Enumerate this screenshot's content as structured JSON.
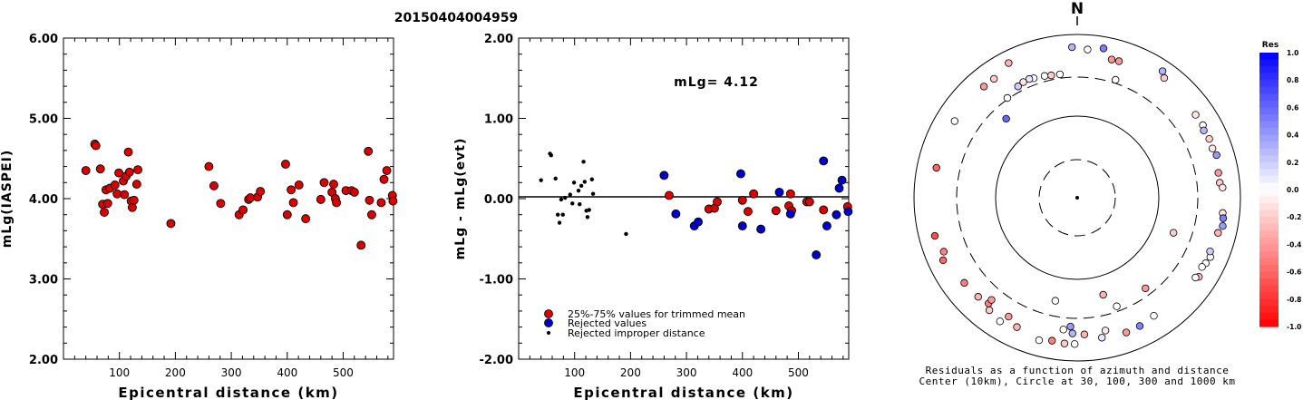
{
  "title": "20150404004959",
  "chart_data": [
    {
      "type": "scatter",
      "xlabel": "Epicentral distance (km)",
      "ylabel": "mLg(IASPEI)",
      "xlim": [
        0,
        590
      ],
      "ylim": [
        2.0,
        6.0
      ],
      "xticks": [
        "100",
        "200",
        "300",
        "400",
        "500"
      ],
      "yticks": [
        "2.00",
        "3.00",
        "4.00",
        "5.00",
        "6.00"
      ],
      "marker_color": "#dd0000",
      "points": [
        [
          40,
          4.35
        ],
        [
          56,
          4.68
        ],
        [
          58,
          4.66
        ],
        [
          66,
          4.37
        ],
        [
          70,
          3.93
        ],
        [
          73,
          3.83
        ],
        [
          76,
          4.11
        ],
        [
          79,
          3.94
        ],
        [
          83,
          4.13
        ],
        [
          92,
          4.17
        ],
        [
          96,
          4.06
        ],
        [
          99,
          4.32
        ],
        [
          107,
          4.22
        ],
        [
          109,
          4.05
        ],
        [
          112,
          4.28
        ],
        [
          116,
          4.58
        ],
        [
          118,
          4.33
        ],
        [
          121,
          3.97
        ],
        [
          123,
          3.89
        ],
        [
          126,
          3.98
        ],
        [
          131,
          4.18
        ],
        [
          133,
          4.36
        ],
        [
          192,
          3.69
        ],
        [
          260,
          4.4
        ],
        [
          269,
          4.16
        ],
        [
          281,
          3.94
        ],
        [
          314,
          3.8
        ],
        [
          321,
          3.86
        ],
        [
          331,
          3.99
        ],
        [
          334,
          4.01
        ],
        [
          347,
          4.02
        ],
        [
          352,
          4.09
        ],
        [
          397,
          4.43
        ],
        [
          400,
          3.8
        ],
        [
          407,
          4.11
        ],
        [
          411,
          3.95
        ],
        [
          421,
          4.17
        ],
        [
          433,
          3.75
        ],
        [
          460,
          3.99
        ],
        [
          466,
          4.2
        ],
        [
          480,
          4.08
        ],
        [
          483,
          4.18
        ],
        [
          486,
          4.0
        ],
        [
          488,
          3.95
        ],
        [
          505,
          4.1
        ],
        [
          515,
          4.1
        ],
        [
          520,
          4.08
        ],
        [
          532,
          3.42
        ],
        [
          545,
          4.59
        ],
        [
          547,
          3.98
        ],
        [
          551,
          3.8
        ],
        [
          568,
          3.95
        ],
        [
          573,
          4.24
        ],
        [
          578,
          4.35
        ],
        [
          588,
          4.04
        ],
        [
          589,
          3.97
        ]
      ]
    },
    {
      "type": "scatter",
      "xlabel": "Epicentral distance (km)",
      "ylabel": "mLg - mLg(evt)",
      "xlim": [
        0,
        590
      ],
      "ylim": [
        -2.0,
        2.0
      ],
      "xticks": [
        "100",
        "200",
        "300",
        "400",
        "500"
      ],
      "yticks": [
        "-2.00",
        "-1.00",
        "0.00",
        "1.00",
        "2.00"
      ],
      "annotation": "mLg= 4.12",
      "reference_line_y": 0.0,
      "legend": [
        {
          "label": "25%-75% values for trimmed mean",
          "color": "#dd0000",
          "marker": "circle"
        },
        {
          "label": "Rejected values",
          "color": "#0000cc",
          "marker": "circle"
        },
        {
          "label": "Rejected improper distance",
          "color": "#000000",
          "marker": "dot"
        }
      ],
      "series": [
        {
          "name": "25%-75% values for trimmed mean",
          "color": "#dd0000",
          "points": [
            [
              269,
              0.04
            ],
            [
              340,
              -0.13
            ],
            [
              350,
              -0.12
            ],
            [
              355,
              -0.04
            ],
            [
              400,
              -0.02
            ],
            [
              410,
              -0.16
            ],
            [
              420,
              0.06
            ],
            [
              460,
              -0.15
            ],
            [
              483,
              -0.09
            ],
            [
              486,
              0.06
            ],
            [
              488,
              -0.15
            ],
            [
              515,
              -0.04
            ],
            [
              520,
              -0.04
            ],
            [
              545,
              -0.14
            ],
            [
              588,
              -0.1
            ]
          ]
        },
        {
          "name": "Rejected values",
          "color": "#0000cc",
          "points": [
            [
              260,
              0.29
            ],
            [
              281,
              -0.19
            ],
            [
              314,
              -0.34
            ],
            [
              321,
              -0.29
            ],
            [
              397,
              0.31
            ],
            [
              400,
              -0.34
            ],
            [
              433,
              -0.38
            ],
            [
              466,
              0.08
            ],
            [
              486,
              -0.19
            ],
            [
              532,
              -0.7
            ],
            [
              545,
              0.47
            ],
            [
              551,
              -0.34
            ],
            [
              568,
              -0.2
            ],
            [
              573,
              0.13
            ],
            [
              578,
              0.23
            ],
            [
              589,
              -0.16
            ]
          ]
        },
        {
          "name": "Rejected improper distance",
          "color": "#000000",
          "points": [
            [
              40,
              0.23
            ],
            [
              56,
              0.56
            ],
            [
              58,
              0.54
            ],
            [
              66,
              0.25
            ],
            [
              70,
              -0.2
            ],
            [
              73,
              -0.3
            ],
            [
              76,
              -0.01
            ],
            [
              79,
              -0.2
            ],
            [
              83,
              0.01
            ],
            [
              92,
              0.05
            ],
            [
              96,
              -0.06
            ],
            [
              99,
              0.2
            ],
            [
              107,
              0.1
            ],
            [
              109,
              -0.07
            ],
            [
              112,
              0.16
            ],
            [
              116,
              0.46
            ],
            [
              118,
              0.21
            ],
            [
              121,
              -0.15
            ],
            [
              123,
              -0.23
            ],
            [
              126,
              -0.14
            ],
            [
              131,
              0.24
            ],
            [
              133,
              0.06
            ],
            [
              192,
              -0.44
            ]
          ]
        }
      ]
    }
  ],
  "polar": {
    "north_label": "N",
    "caption_line1": "Residuals as a function of azimuth and distance",
    "caption_line2": "Center (10km), Circle at 30, 100, 300 and 1000 km",
    "colorbar_title": "Res",
    "colorbar_ticks": [
      "1.0",
      "0.8",
      "0.6",
      "0.4",
      "0.2",
      "0.0",
      "-0.2",
      "-0.4",
      "-0.6",
      "-0.8",
      "-1.0"
    ],
    "ring_distances_km": [
      30,
      100,
      300,
      1000
    ],
    "stations": [
      {
        "az": -2,
        "dist": 700,
        "res": 0.3
      },
      {
        "az": 4,
        "dist": 660,
        "res": 0.0
      },
      {
        "az": 10,
        "dist": 720,
        "res": 0.5
      },
      {
        "az": 14,
        "dist": 555,
        "res": -0.4
      },
      {
        "az": 17,
        "dist": 560,
        "res": -0.4
      },
      {
        "az": 34,
        "dist": 740,
        "res": 0.3
      },
      {
        "az": 36,
        "dist": 650,
        "res": -0.2
      },
      {
        "az": 18,
        "dist": 330,
        "res": 0.0
      },
      {
        "az": -8,
        "dist": 335,
        "res": 0.0
      },
      {
        "az": -12,
        "dist": 340,
        "res": -0.2
      },
      {
        "az": -15,
        "dist": 350,
        "res": 0.0
      },
      {
        "az": -20,
        "dist": 360,
        "res": 0.0
      },
      {
        "az": -22,
        "dist": 370,
        "res": 0.1
      },
      {
        "az": -25,
        "dist": 365,
        "res": -0.1
      },
      {
        "az": -28,
        "dist": 350,
        "res": 0.2
      },
      {
        "az": -35,
        "dist": 310,
        "res": 0.0
      },
      {
        "az": -42,
        "dist": 200,
        "res": 0.6
      },
      {
        "az": -35,
        "dist": 600,
        "res": -0.2
      },
      {
        "az": -27,
        "dist": 710,
        "res": -0.3
      },
      {
        "az": -40,
        "dist": 600,
        "res": -0.4
      },
      {
        "az": -58,
        "dist": 590,
        "res": 0.0
      },
      {
        "az": -78,
        "dist": 580,
        "res": -0.6
      },
      {
        "az": 55,
        "dist": 590,
        "res": -0.1
      },
      {
        "az": 60,
        "dist": 600,
        "res": 0.0
      },
      {
        "az": 62,
        "dist": 570,
        "res": 0.3
      },
      {
        "az": 66,
        "dist": 590,
        "res": -0.2
      },
      {
        "az": 70,
        "dist": 580,
        "res": -0.1
      },
      {
        "az": 73,
        "dist": 610,
        "res": 0.4
      },
      {
        "az": 80,
        "dist": 570,
        "res": -0.4
      },
      {
        "az": 84,
        "dist": 570,
        "res": -0.2
      },
      {
        "az": 86,
        "dist": 610,
        "res": -0.1
      },
      {
        "az": 96,
        "dist": 620,
        "res": -0.1
      },
      {
        "az": 98,
        "dist": 640,
        "res": 0.5
      },
      {
        "az": 101,
        "dist": 655,
        "res": 0.4
      },
      {
        "az": 104,
        "dist": 600,
        "res": -0.3
      },
      {
        "az": 114,
        "dist": 610,
        "res": 0.0
      },
      {
        "az": 112,
        "dist": 570,
        "res": 0.2
      },
      {
        "az": 117,
        "dist": 585,
        "res": 0.0
      },
      {
        "az": 119,
        "dist": 560,
        "res": 0.0
      },
      {
        "az": 123,
        "dist": 600,
        "res": -0.3
      },
      {
        "az": 124,
        "dist": 560,
        "res": 0.0
      },
      {
        "az": 110,
        "dist": 180,
        "res": -0.2
      },
      {
        "az": 143,
        "dist": 245,
        "res": -0.4
      },
      {
        "az": 147,
        "dist": 530,
        "res": 0.0
      },
      {
        "az": 154,
        "dist": 560,
        "res": 0.5
      },
      {
        "az": 160,
        "dist": 570,
        "res": -0.4
      },
      {
        "az": 168,
        "dist": 460,
        "res": -0.1
      },
      {
        "az": 177,
        "dist": 475,
        "res": -0.3
      },
      {
        "az": 181,
        "dist": 620,
        "res": 0.0
      },
      {
        "az": 185,
        "dist": 620,
        "res": -0.2
      },
      {
        "az": 190,
        "dist": 600,
        "res": -0.5
      },
      {
        "az": 170,
        "dist": 550,
        "res": 0.1
      },
      {
        "az": -178,
        "dist": 460,
        "res": 0.3
      },
      {
        "az": -174,
        "dist": 420,
        "res": 0.0
      },
      {
        "az": -177,
        "dist": 380,
        "res": 0.4
      },
      {
        "az": 160,
        "dist": 260,
        "res": 0.0
      },
      {
        "az": 165,
        "dist": 170,
        "res": -0.3
      },
      {
        "az": -168,
        "dist": 195,
        "res": 0.0
      },
      {
        "az": -165,
        "dist": 640,
        "res": 0.0
      },
      {
        "az": -155,
        "dist": 560,
        "res": -0.3
      },
      {
        "az": -148,
        "dist": 610,
        "res": 0.0
      },
      {
        "az": -142,
        "dist": 560,
        "res": -0.2
      },
      {
        "az": -140,
        "dist": 490,
        "res": -0.5
      },
      {
        "az": -135,
        "dist": 520,
        "res": -0.3
      },
      {
        "az": -127,
        "dist": 540,
        "res": -0.5
      },
      {
        "az": -115,
        "dist": 650,
        "res": -0.6
      },
      {
        "az": -112,
        "dist": 580,
        "res": -0.5
      },
      {
        "az": -105,
        "dist": 640,
        "res": -0.7
      },
      {
        "az": -140,
        "dist": 430,
        "res": -0.4
      },
      {
        "az": -150,
        "dist": 480,
        "res": -0.4
      }
    ]
  }
}
